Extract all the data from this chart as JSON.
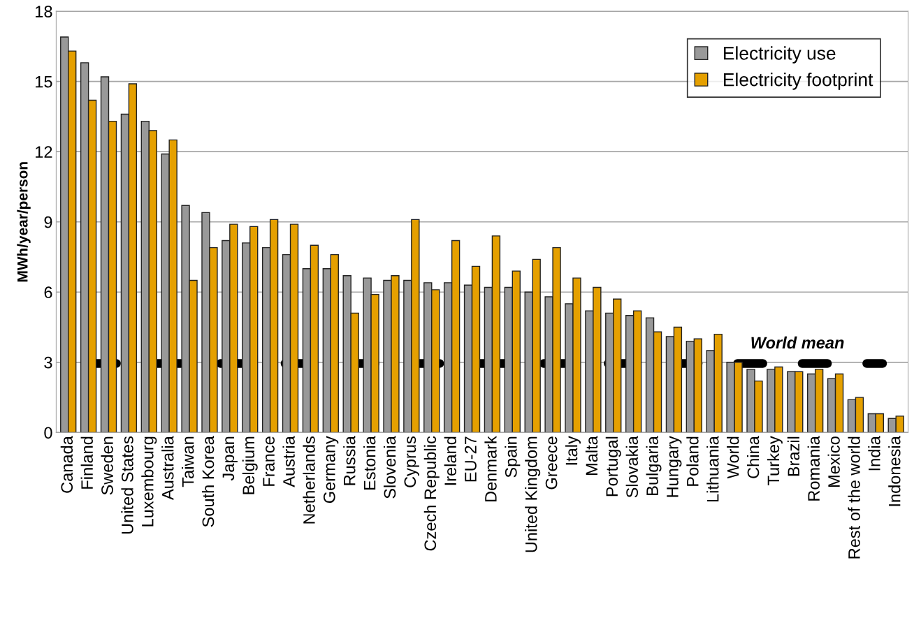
{
  "chart_data": {
    "type": "bar",
    "ylabel": "MWh/year/person",
    "categories": [
      "Canada",
      "Finland",
      "Sweden",
      "United States",
      "Luxembourg",
      "Australia",
      "Taiwan",
      "South Korea",
      "Japan",
      "Belgium",
      "France",
      "Austria",
      "Netherlands",
      "Germany",
      "Russia",
      "Estonia",
      "Slovenia",
      "Cyprus",
      "Czech Republic",
      "Ireland",
      "EU-27",
      "Denmark",
      "Spain",
      "United Kingdom",
      "Greece",
      "Italy",
      "Malta",
      "Portugal",
      "Slovakia",
      "Bulgaria",
      "Hungary",
      "Poland",
      "Lithuania",
      "World",
      "China",
      "Turkey",
      "Brazil",
      "Romania",
      "Mexico",
      "Rest of the world",
      "India",
      "Indonesia"
    ],
    "series": [
      {
        "name": "Electricity use",
        "color": "#999999",
        "values": [
          16.9,
          15.8,
          15.2,
          13.6,
          13.3,
          11.9,
          9.7,
          9.4,
          8.2,
          8.1,
          7.9,
          7.6,
          7.0,
          7.0,
          6.7,
          6.6,
          6.5,
          6.5,
          6.4,
          6.4,
          6.3,
          6.2,
          6.2,
          6.0,
          5.8,
          5.5,
          5.2,
          5.1,
          5.0,
          4.9,
          4.1,
          3.9,
          3.5,
          3.0,
          2.7,
          2.7,
          2.6,
          2.5,
          2.3,
          1.4,
          0.8,
          0.6
        ]
      },
      {
        "name": "Electricity footprint",
        "color": "#e5a000",
        "values": [
          16.3,
          14.2,
          13.3,
          14.9,
          12.9,
          12.5,
          6.5,
          7.9,
          8.9,
          8.8,
          9.1,
          8.9,
          8.0,
          7.6,
          5.1,
          5.9,
          6.7,
          9.1,
          6.1,
          8.2,
          7.1,
          8.4,
          6.9,
          7.4,
          7.9,
          6.6,
          6.2,
          5.7,
          5.2,
          4.3,
          4.5,
          4.0,
          4.2,
          3.0,
          2.2,
          2.8,
          2.6,
          2.7,
          2.5,
          1.5,
          0.8,
          0.7
        ]
      }
    ],
    "ylim": [
      0,
      18
    ],
    "yticks": [
      0,
      3,
      6,
      9,
      12,
      15,
      18
    ],
    "grid": "y",
    "legend": "top right",
    "ref_lines": [
      {
        "axis": "y",
        "value": 2.95,
        "label": "World mean",
        "color": "#000000",
        "line_style": "dashed"
      }
    ]
  }
}
